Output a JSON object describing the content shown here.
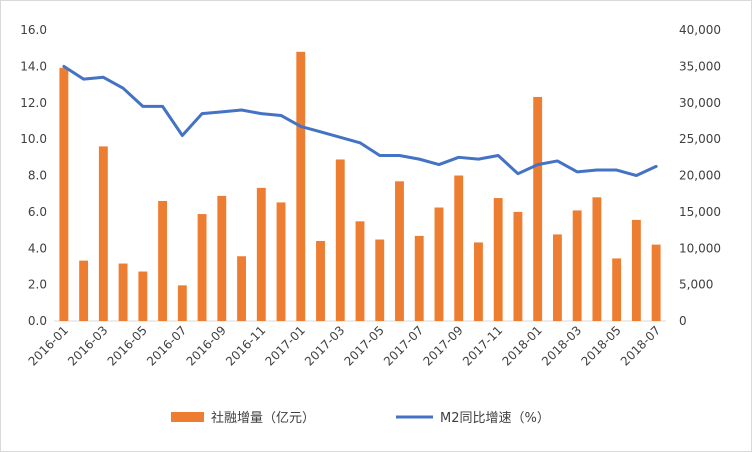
{
  "chart_data": {
    "type": "bar+line",
    "categories": [
      "2016-01",
      "2016-02",
      "2016-03",
      "2016-04",
      "2016-05",
      "2016-06",
      "2016-07",
      "2016-08",
      "2016-09",
      "2016-10",
      "2016-11",
      "2016-12",
      "2017-01",
      "2017-02",
      "2017-03",
      "2017-04",
      "2017-05",
      "2017-06",
      "2017-07",
      "2017-08",
      "2017-09",
      "2017-10",
      "2017-11",
      "2017-12",
      "2018-01",
      "2018-02",
      "2018-03",
      "2018-04",
      "2018-05",
      "2018-06",
      "2018-07"
    ],
    "x_tick_labels": [
      "2016-01",
      "2016-03",
      "2016-05",
      "2016-07",
      "2016-09",
      "2016-11",
      "2017-01",
      "2017-03",
      "2017-05",
      "2017-07",
      "2017-09",
      "2017-11",
      "2018-01",
      "2018-03",
      "2018-05",
      "2018-07"
    ],
    "left_axis": {
      "min": 0,
      "max": 16,
      "step": 2,
      "tick_labels": [
        "0.0",
        "2.0",
        "4.0",
        "6.0",
        "8.0",
        "10.0",
        "12.0",
        "14.0",
        "16.0"
      ]
    },
    "right_axis": {
      "min": 0,
      "max": 40000,
      "step": 5000,
      "tick_labels": [
        "0",
        "5,000",
        "10,000",
        "15,000",
        "20,000",
        "25,000",
        "30,000",
        "35,000",
        "40,000"
      ]
    },
    "series": [
      {
        "name": "社融增量（亿元）",
        "type": "bar",
        "axis": "right",
        "color": "#ed7d31",
        "values": [
          34800,
          8300,
          24000,
          7900,
          6800,
          16500,
          4900,
          14700,
          17200,
          8900,
          18300,
          16300,
          37000,
          11000,
          22200,
          13700,
          11200,
          19200,
          11700,
          15600,
          20000,
          10800,
          16900,
          15000,
          30800,
          11900,
          15200,
          17000,
          8600,
          13900,
          10500
        ]
      },
      {
        "name": "M2同比增速（%）",
        "type": "line",
        "axis": "left",
        "color": "#4472c4",
        "values": [
          14.0,
          13.3,
          13.4,
          12.8,
          11.8,
          11.8,
          10.2,
          11.4,
          11.5,
          11.6,
          11.4,
          11.3,
          10.7,
          10.4,
          10.1,
          9.8,
          9.1,
          9.1,
          8.9,
          8.6,
          9.0,
          8.9,
          9.1,
          8.1,
          8.6,
          8.8,
          8.2,
          8.3,
          8.3,
          8.0,
          8.5
        ]
      }
    ],
    "legend_position": "bottom",
    "grid": false
  }
}
